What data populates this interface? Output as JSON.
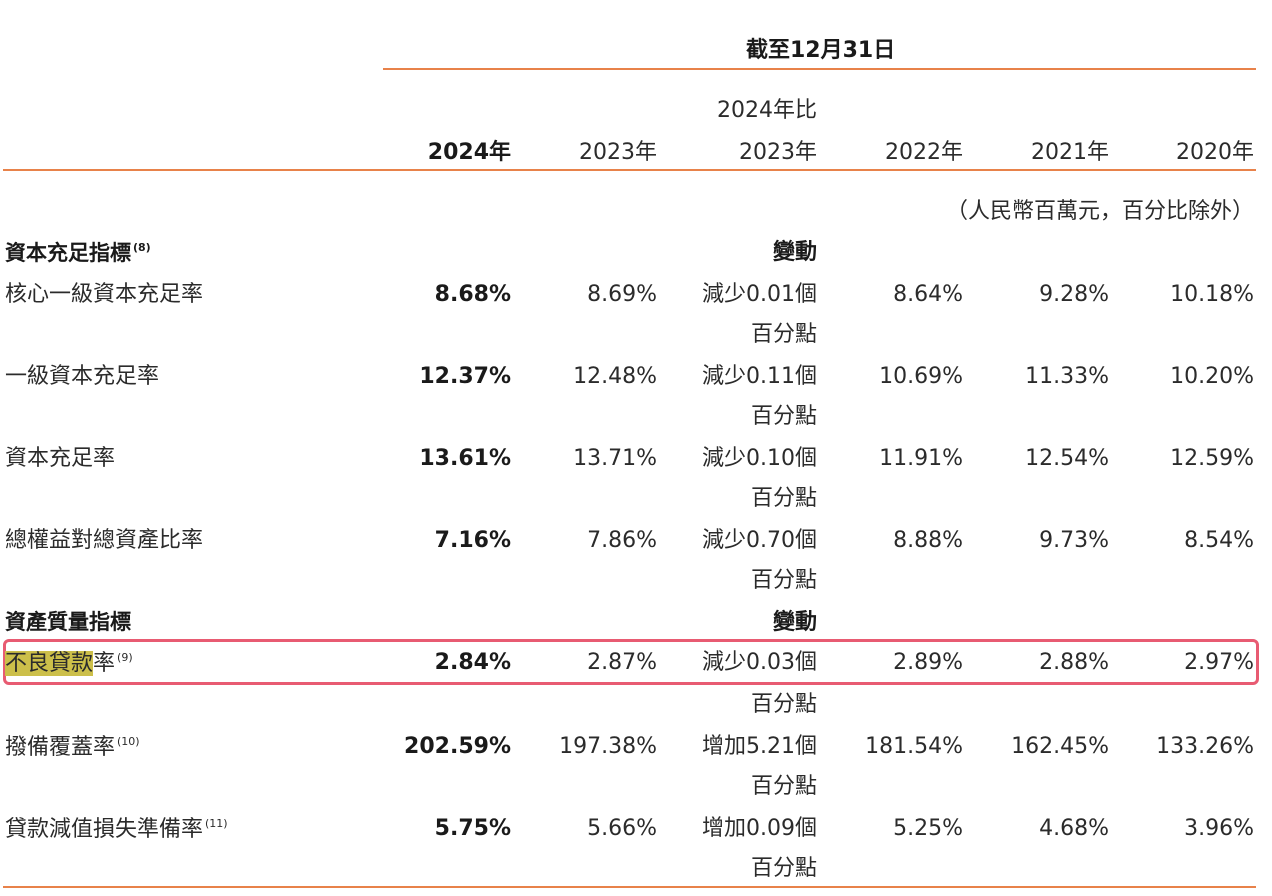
{
  "header": {
    "group_title": "截至12月31日",
    "columns": {
      "y2024": "2024年",
      "y2023": "2023年",
      "change_line1": "2024年比",
      "change_line2": "2023年",
      "y2022": "2022年",
      "y2021": "2021年",
      "y2020": "2020年"
    },
    "unit_note": "（人民幣百萬元，百分比除外）"
  },
  "sections": [
    {
      "title": "資本充足指標",
      "title_sup": "(8)",
      "change_label": "變動",
      "rows": [
        {
          "label": "核心一級資本充足率",
          "sup": "",
          "v2024": "8.68%",
          "v2023": "8.69%",
          "change1": "減少0.01個",
          "change2": "百分點",
          "v2022": "8.64%",
          "v2021": "9.28%",
          "v2020": "10.18%"
        },
        {
          "label": "一級資本充足率",
          "sup": "",
          "v2024": "12.37%",
          "v2023": "12.48%",
          "change1": "減少0.11個",
          "change2": "百分點",
          "v2022": "10.69%",
          "v2021": "11.33%",
          "v2020": "10.20%"
        },
        {
          "label": "資本充足率",
          "sup": "",
          "v2024": "13.61%",
          "v2023": "13.71%",
          "change1": "減少0.10個",
          "change2": "百分點",
          "v2022": "11.91%",
          "v2021": "12.54%",
          "v2020": "12.59%"
        },
        {
          "label": "總權益對總資產比率",
          "sup": "",
          "v2024": "7.16%",
          "v2023": "7.86%",
          "change1": "減少0.70個",
          "change2": "百分點",
          "v2022": "8.88%",
          "v2021": "9.73%",
          "v2020": "8.54%"
        }
      ]
    },
    {
      "title": "資產質量指標",
      "title_sup": "",
      "change_label": "變動",
      "rows": [
        {
          "label_hl": "不良貸款",
          "label_rest": "率",
          "sup": "(9)",
          "v2024": "2.84%",
          "v2023": "2.87%",
          "change1": "減少0.03個",
          "change2": "百分點",
          "v2022": "2.89%",
          "v2021": "2.88%",
          "v2020": "2.97%"
        },
        {
          "label": "撥備覆蓋率",
          "sup": "(10)",
          "v2024": "202.59%",
          "v2023": "197.38%",
          "change1": "增加5.21個",
          "change2": "百分點",
          "v2022": "181.54%",
          "v2021": "162.45%",
          "v2020": "133.26%"
        },
        {
          "label": "貸款減值損失準備率",
          "sup": "(11)",
          "v2024": "5.75%",
          "v2023": "5.66%",
          "change1": "增加0.09個",
          "change2": "百分點",
          "v2022": "5.25%",
          "v2021": "4.68%",
          "v2020": "3.96%"
        }
      ]
    }
  ]
}
